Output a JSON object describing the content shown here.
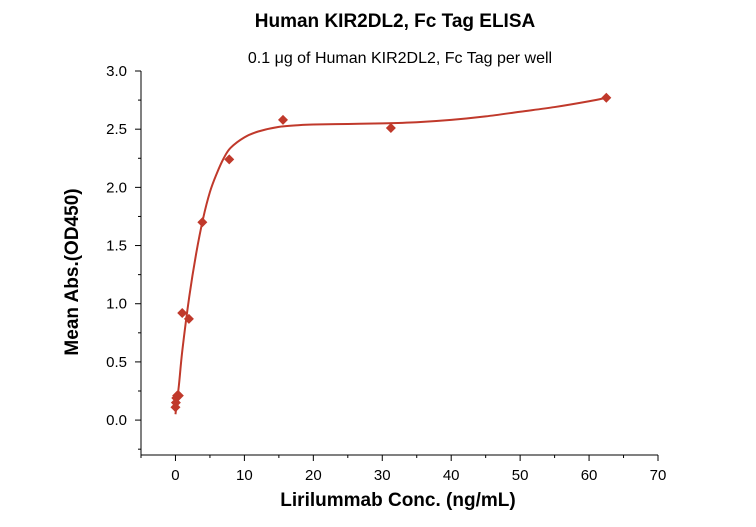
{
  "chart_data": {
    "type": "scatter",
    "title": "Human KIR2DL2, Fc Tag ELISA",
    "subtitle": "0.1 μg of Human KIR2DL2, Fc Tag per well",
    "xlabel": "Lirilummab Conc. (ng/mL)",
    "ylabel": "Mean Abs.(OD450)",
    "xlim": [
      -5,
      70
    ],
    "ylim": [
      -0.3,
      3.0
    ],
    "xticks": [
      0,
      10,
      20,
      30,
      40,
      50,
      60,
      70
    ],
    "yticks": [
      0.0,
      0.5,
      1.0,
      1.5,
      2.0,
      2.5,
      3.0
    ],
    "xtick_labels": [
      "0",
      "10",
      "20",
      "30",
      "40",
      "50",
      "60",
      "70"
    ],
    "ytick_labels": [
      "0.0",
      "0.5",
      "1.0",
      "1.5",
      "2.0",
      "2.5",
      "3.0"
    ],
    "grid": false,
    "legend": "none",
    "series": [
      {
        "color": "#c0392b",
        "marker": "diamond",
        "points": [
          {
            "x": 0.0,
            "y": 0.11
          },
          {
            "x": 0.06,
            "y": 0.15
          },
          {
            "x": 0.12,
            "y": 0.19
          },
          {
            "x": 0.24,
            "y": 0.21
          },
          {
            "x": 0.49,
            "y": 0.21
          },
          {
            "x": 0.98,
            "y": 0.92
          },
          {
            "x": 1.95,
            "y": 0.87
          },
          {
            "x": 3.9,
            "y": 1.7
          },
          {
            "x": 7.8,
            "y": 2.24
          },
          {
            "x": 15.6,
            "y": 2.58
          },
          {
            "x": 31.25,
            "y": 2.51
          },
          {
            "x": 62.5,
            "y": 2.77
          }
        ],
        "fit_curve": {
          "type": "smooth",
          "x": [
            0,
            0.5,
            1,
            2,
            3,
            4,
            5,
            6,
            7,
            8,
            10,
            12,
            15,
            18,
            20,
            25,
            30,
            35,
            40,
            45,
            50,
            55,
            60,
            62.5
          ],
          "y": [
            0.05,
            0.3,
            0.6,
            1.06,
            1.43,
            1.73,
            1.96,
            2.12,
            2.25,
            2.34,
            2.43,
            2.48,
            2.52,
            2.535,
            2.54,
            2.545,
            2.55,
            2.56,
            2.58,
            2.61,
            2.65,
            2.69,
            2.74,
            2.77
          ]
        }
      }
    ]
  }
}
